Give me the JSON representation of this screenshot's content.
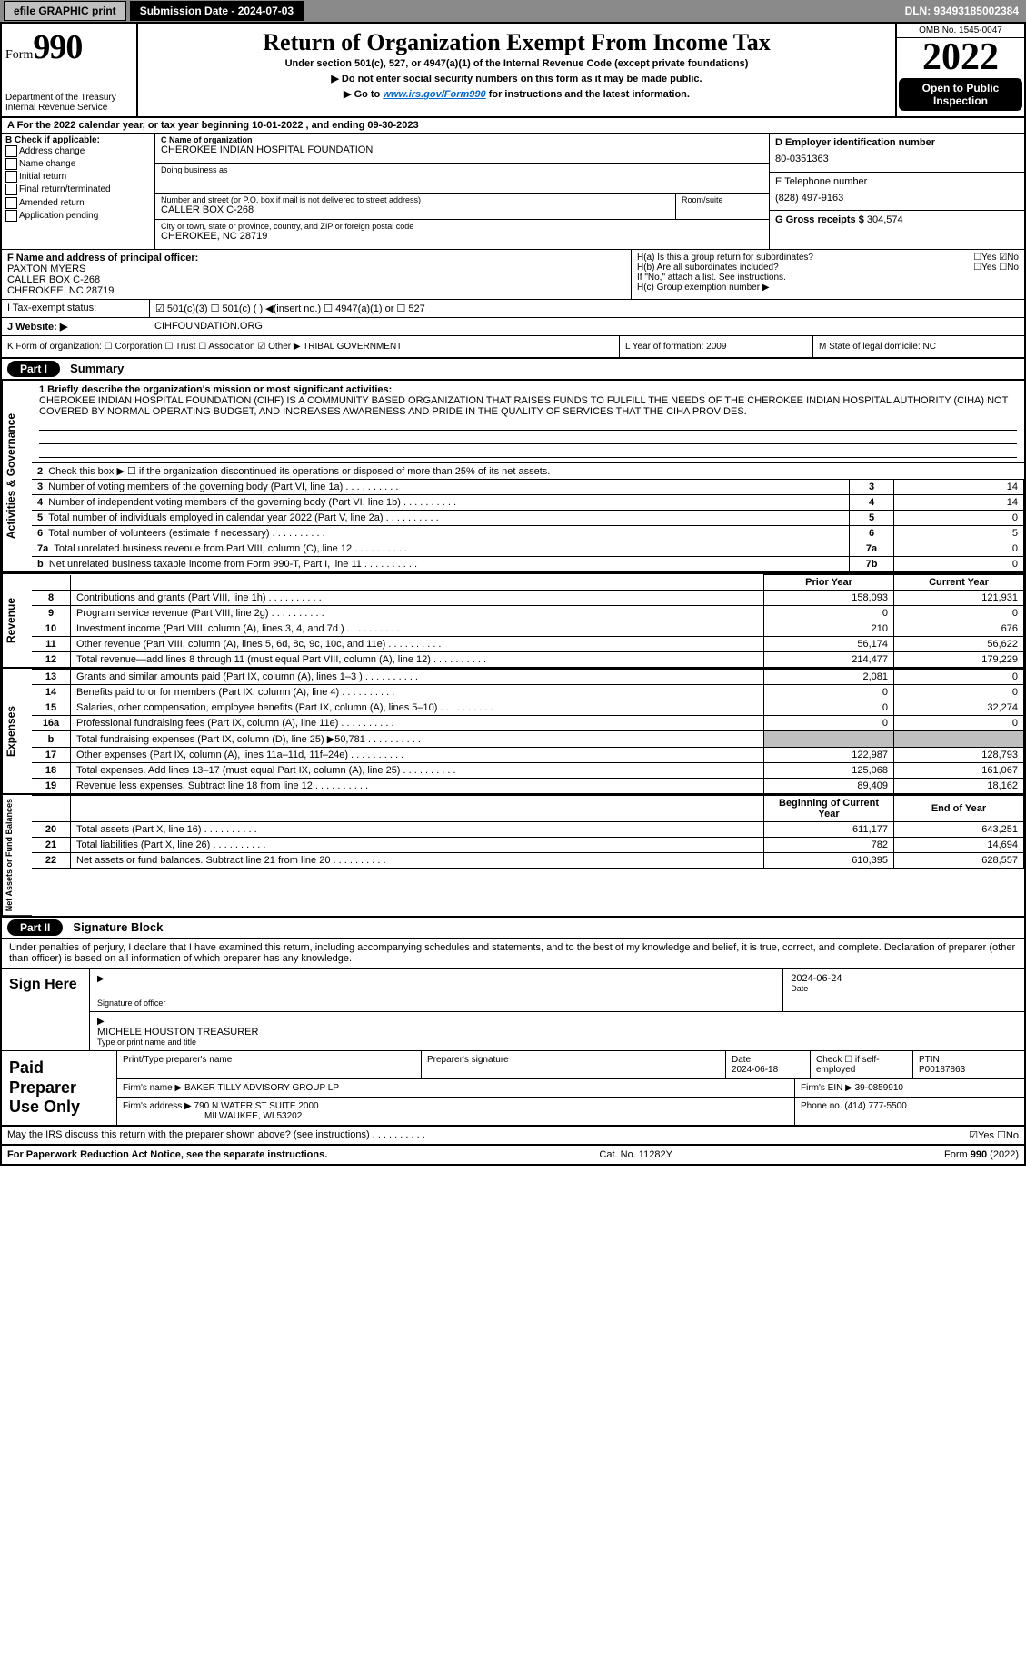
{
  "topbar": {
    "efile": "efile GRAPHIC print",
    "submission_label": "Submission Date - 2024-07-03",
    "dln": "DLN: 93493185002384"
  },
  "header": {
    "form_word": "Form",
    "form_number": "990",
    "dept": "Department of the Treasury",
    "irs": "Internal Revenue Service",
    "title": "Return of Organization Exempt From Income Tax",
    "subtitle": "Under section 501(c), 527, or 4947(a)(1) of the Internal Revenue Code (except private foundations)",
    "warn": "▶ Do not enter social security numbers on this form as it may be made public.",
    "goto_pre": "▶ Go to ",
    "goto_link": "www.irs.gov/Form990",
    "goto_post": " for instructions and the latest information.",
    "omb": "OMB No. 1545-0047",
    "year": "2022",
    "open": "Open to Public Inspection"
  },
  "rowA": "A For the 2022 calendar year, or tax year beginning 10-01-2022    , and ending 09-30-2023",
  "boxB": {
    "title": "B Check if applicable:",
    "opts": [
      "Address change",
      "Name change",
      "Initial return",
      "Final return/terminated",
      "Amended return",
      "Application pending"
    ]
  },
  "boxC": {
    "name_lbl": "C Name of organization",
    "name": "CHEROKEE INDIAN HOSPITAL FOUNDATION",
    "dba_lbl": "Doing business as",
    "dba": "",
    "street_lbl": "Number and street (or P.O. box if mail is not delivered to street address)",
    "street": "CALLER BOX C-268",
    "room_lbl": "Room/suite",
    "city_lbl": "City or town, state or province, country, and ZIP or foreign postal code",
    "city": "CHEROKEE, NC  28719"
  },
  "boxD": {
    "lbl": "D Employer identification number",
    "val": "80-0351363"
  },
  "boxE": {
    "lbl": "E Telephone number",
    "val": "(828) 497-9163"
  },
  "boxG": {
    "lbl": "G Gross receipts $",
    "val": "304,574"
  },
  "boxF": {
    "lbl": "F Name and address of principal officer:",
    "name": "PAXTON MYERS",
    "addr1": "CALLER BOX C-268",
    "addr2": "CHEROKEE, NC  28719"
  },
  "boxH": {
    "a": "H(a)  Is this a group return for subordinates?",
    "a_yesno": "☐Yes ☑No",
    "b": "H(b)  Are all subordinates included?",
    "b_yesno": "☐Yes ☐No",
    "b_note": "If \"No,\" attach a list. See instructions.",
    "c": "H(c)  Group exemption number ▶"
  },
  "rowI": {
    "lbl": "I   Tax-exempt status:",
    "opts": "☑ 501(c)(3)   ☐ 501(c) (  ) ◀(insert no.)   ☐ 4947(a)(1) or   ☐ 527"
  },
  "rowJ": {
    "lbl": "J   Website: ▶",
    "val": "CIHFOUNDATION.ORG"
  },
  "rowK": {
    "lbl": "K Form of organization:  ☐ Corporation  ☐ Trust  ☐ Association  ☑ Other ▶",
    "other": "TRIBAL GOVERNMENT",
    "L": "L Year of formation: 2009",
    "M": "M State of legal domicile: NC"
  },
  "part1": {
    "hdr": "Part I",
    "title": "Summary"
  },
  "governance_label": "Activities & Governance",
  "revenue_label": "Revenue",
  "expenses_label": "Expenses",
  "netassets_label": "Net Assets or Fund Balances",
  "mission": {
    "q": "1  Briefly describe the organization's mission or most significant activities:",
    "text": "CHEROKEE INDIAN HOSPITAL FOUNDATION (CIHF) IS A COMMUNITY BASED ORGANIZATION THAT RAISES FUNDS TO FULFILL THE NEEDS OF THE CHEROKEE INDIAN HOSPITAL AUTHORITY (CIHA) NOT COVERED BY NORMAL OPERATING BUDGET, AND INCREASES AWARENESS AND PRIDE IN THE QUALITY OF SERVICES THAT THE CIHA PROVIDES."
  },
  "gov_rows": [
    {
      "n": "2",
      "desc": "Check this box ▶ ☐  if the organization discontinued its operations or disposed of more than 25% of its net assets.",
      "box": "",
      "val": ""
    },
    {
      "n": "3",
      "desc": "Number of voting members of the governing body (Part VI, line 1a)",
      "box": "3",
      "val": "14"
    },
    {
      "n": "4",
      "desc": "Number of independent voting members of the governing body (Part VI, line 1b)",
      "box": "4",
      "val": "14"
    },
    {
      "n": "5",
      "desc": "Total number of individuals employed in calendar year 2022 (Part V, line 2a)",
      "box": "5",
      "val": "0"
    },
    {
      "n": "6",
      "desc": "Total number of volunteers (estimate if necessary)",
      "box": "6",
      "val": "5"
    },
    {
      "n": "7a",
      "desc": "Total unrelated business revenue from Part VIII, column (C), line 12",
      "box": "7a",
      "val": "0"
    },
    {
      "n": "b",
      "desc": "Net unrelated business taxable income from Form 990-T, Part I, line 11",
      "box": "7b",
      "val": "0"
    }
  ],
  "two_col_hdr": {
    "prior": "Prior Year",
    "current": "Current Year"
  },
  "revenue_rows": [
    {
      "n": "8",
      "desc": "Contributions and grants (Part VIII, line 1h)",
      "p": "158,093",
      "c": "121,931"
    },
    {
      "n": "9",
      "desc": "Program service revenue (Part VIII, line 2g)",
      "p": "0",
      "c": "0"
    },
    {
      "n": "10",
      "desc": "Investment income (Part VIII, column (A), lines 3, 4, and 7d )",
      "p": "210",
      "c": "676"
    },
    {
      "n": "11",
      "desc": "Other revenue (Part VIII, column (A), lines 5, 6d, 8c, 9c, 10c, and 11e)",
      "p": "56,174",
      "c": "56,622"
    },
    {
      "n": "12",
      "desc": "Total revenue—add lines 8 through 11 (must equal Part VIII, column (A), line 12)",
      "p": "214,477",
      "c": "179,229"
    }
  ],
  "expense_rows": [
    {
      "n": "13",
      "desc": "Grants and similar amounts paid (Part IX, column (A), lines 1–3 )",
      "p": "2,081",
      "c": "0"
    },
    {
      "n": "14",
      "desc": "Benefits paid to or for members (Part IX, column (A), line 4)",
      "p": "0",
      "c": "0"
    },
    {
      "n": "15",
      "desc": "Salaries, other compensation, employee benefits (Part IX, column (A), lines 5–10)",
      "p": "0",
      "c": "32,274"
    },
    {
      "n": "16a",
      "desc": "Professional fundraising fees (Part IX, column (A), line 11e)",
      "p": "0",
      "c": "0"
    },
    {
      "n": "b",
      "desc": "Total fundraising expenses (Part IX, column (D), line 25) ▶50,781",
      "p": "shade",
      "c": "shade"
    },
    {
      "n": "17",
      "desc": "Other expenses (Part IX, column (A), lines 11a–11d, 11f–24e)",
      "p": "122,987",
      "c": "128,793"
    },
    {
      "n": "18",
      "desc": "Total expenses. Add lines 13–17 (must equal Part IX, column (A), line 25)",
      "p": "125,068",
      "c": "161,067"
    },
    {
      "n": "19",
      "desc": "Revenue less expenses. Subtract line 18 from line 12",
      "p": "89,409",
      "c": "18,162"
    }
  ],
  "net_hdr": {
    "beg": "Beginning of Current Year",
    "end": "End of Year"
  },
  "net_rows": [
    {
      "n": "20",
      "desc": "Total assets (Part X, line 16)",
      "p": "611,177",
      "c": "643,251"
    },
    {
      "n": "21",
      "desc": "Total liabilities (Part X, line 26)",
      "p": "782",
      "c": "14,694"
    },
    {
      "n": "22",
      "desc": "Net assets or fund balances. Subtract line 21 from line 20",
      "p": "610,395",
      "c": "628,557"
    }
  ],
  "part2": {
    "hdr": "Part II",
    "title": "Signature Block"
  },
  "penalties": "Under penalties of perjury, I declare that I have examined this return, including accompanying schedules and statements, and to the best of my knowledge and belief, it is true, correct, and complete. Declaration of preparer (other than officer) is based on all information of which preparer has any knowledge.",
  "sign": {
    "label": "Sign Here",
    "sig_lbl": "Signature of officer",
    "date": "2024-06-24",
    "date_lbl": "Date",
    "name": "MICHELE HOUSTON  TREASURER",
    "name_lbl": "Type or print name and title"
  },
  "paid": {
    "label": "Paid Preparer Use Only",
    "h_name": "Print/Type preparer's name",
    "h_sig": "Preparer's signature",
    "h_date": "Date",
    "date": "2024-06-18",
    "h_self": "Check ☐ if self-employed",
    "h_ptin": "PTIN",
    "ptin": "P00187863",
    "firm_lbl": "Firm's name    ▶",
    "firm": "BAKER TILLY ADVISORY GROUP LP",
    "ein_lbl": "Firm's EIN ▶",
    "ein": "39-0859910",
    "addr_lbl": "Firm's address ▶",
    "addr1": "790 N WATER ST SUITE 2000",
    "addr2": "MILWAUKEE, WI  53202",
    "phone_lbl": "Phone no.",
    "phone": "(414) 777-5500"
  },
  "may_discuss": "May the IRS discuss this return with the preparer shown above? (see instructions)",
  "may_yesno": "☑Yes  ☐No",
  "footer": {
    "left": "For Paperwork Reduction Act Notice, see the separate instructions.",
    "mid": "Cat. No. 11282Y",
    "right": "Form 990 (2022)"
  }
}
